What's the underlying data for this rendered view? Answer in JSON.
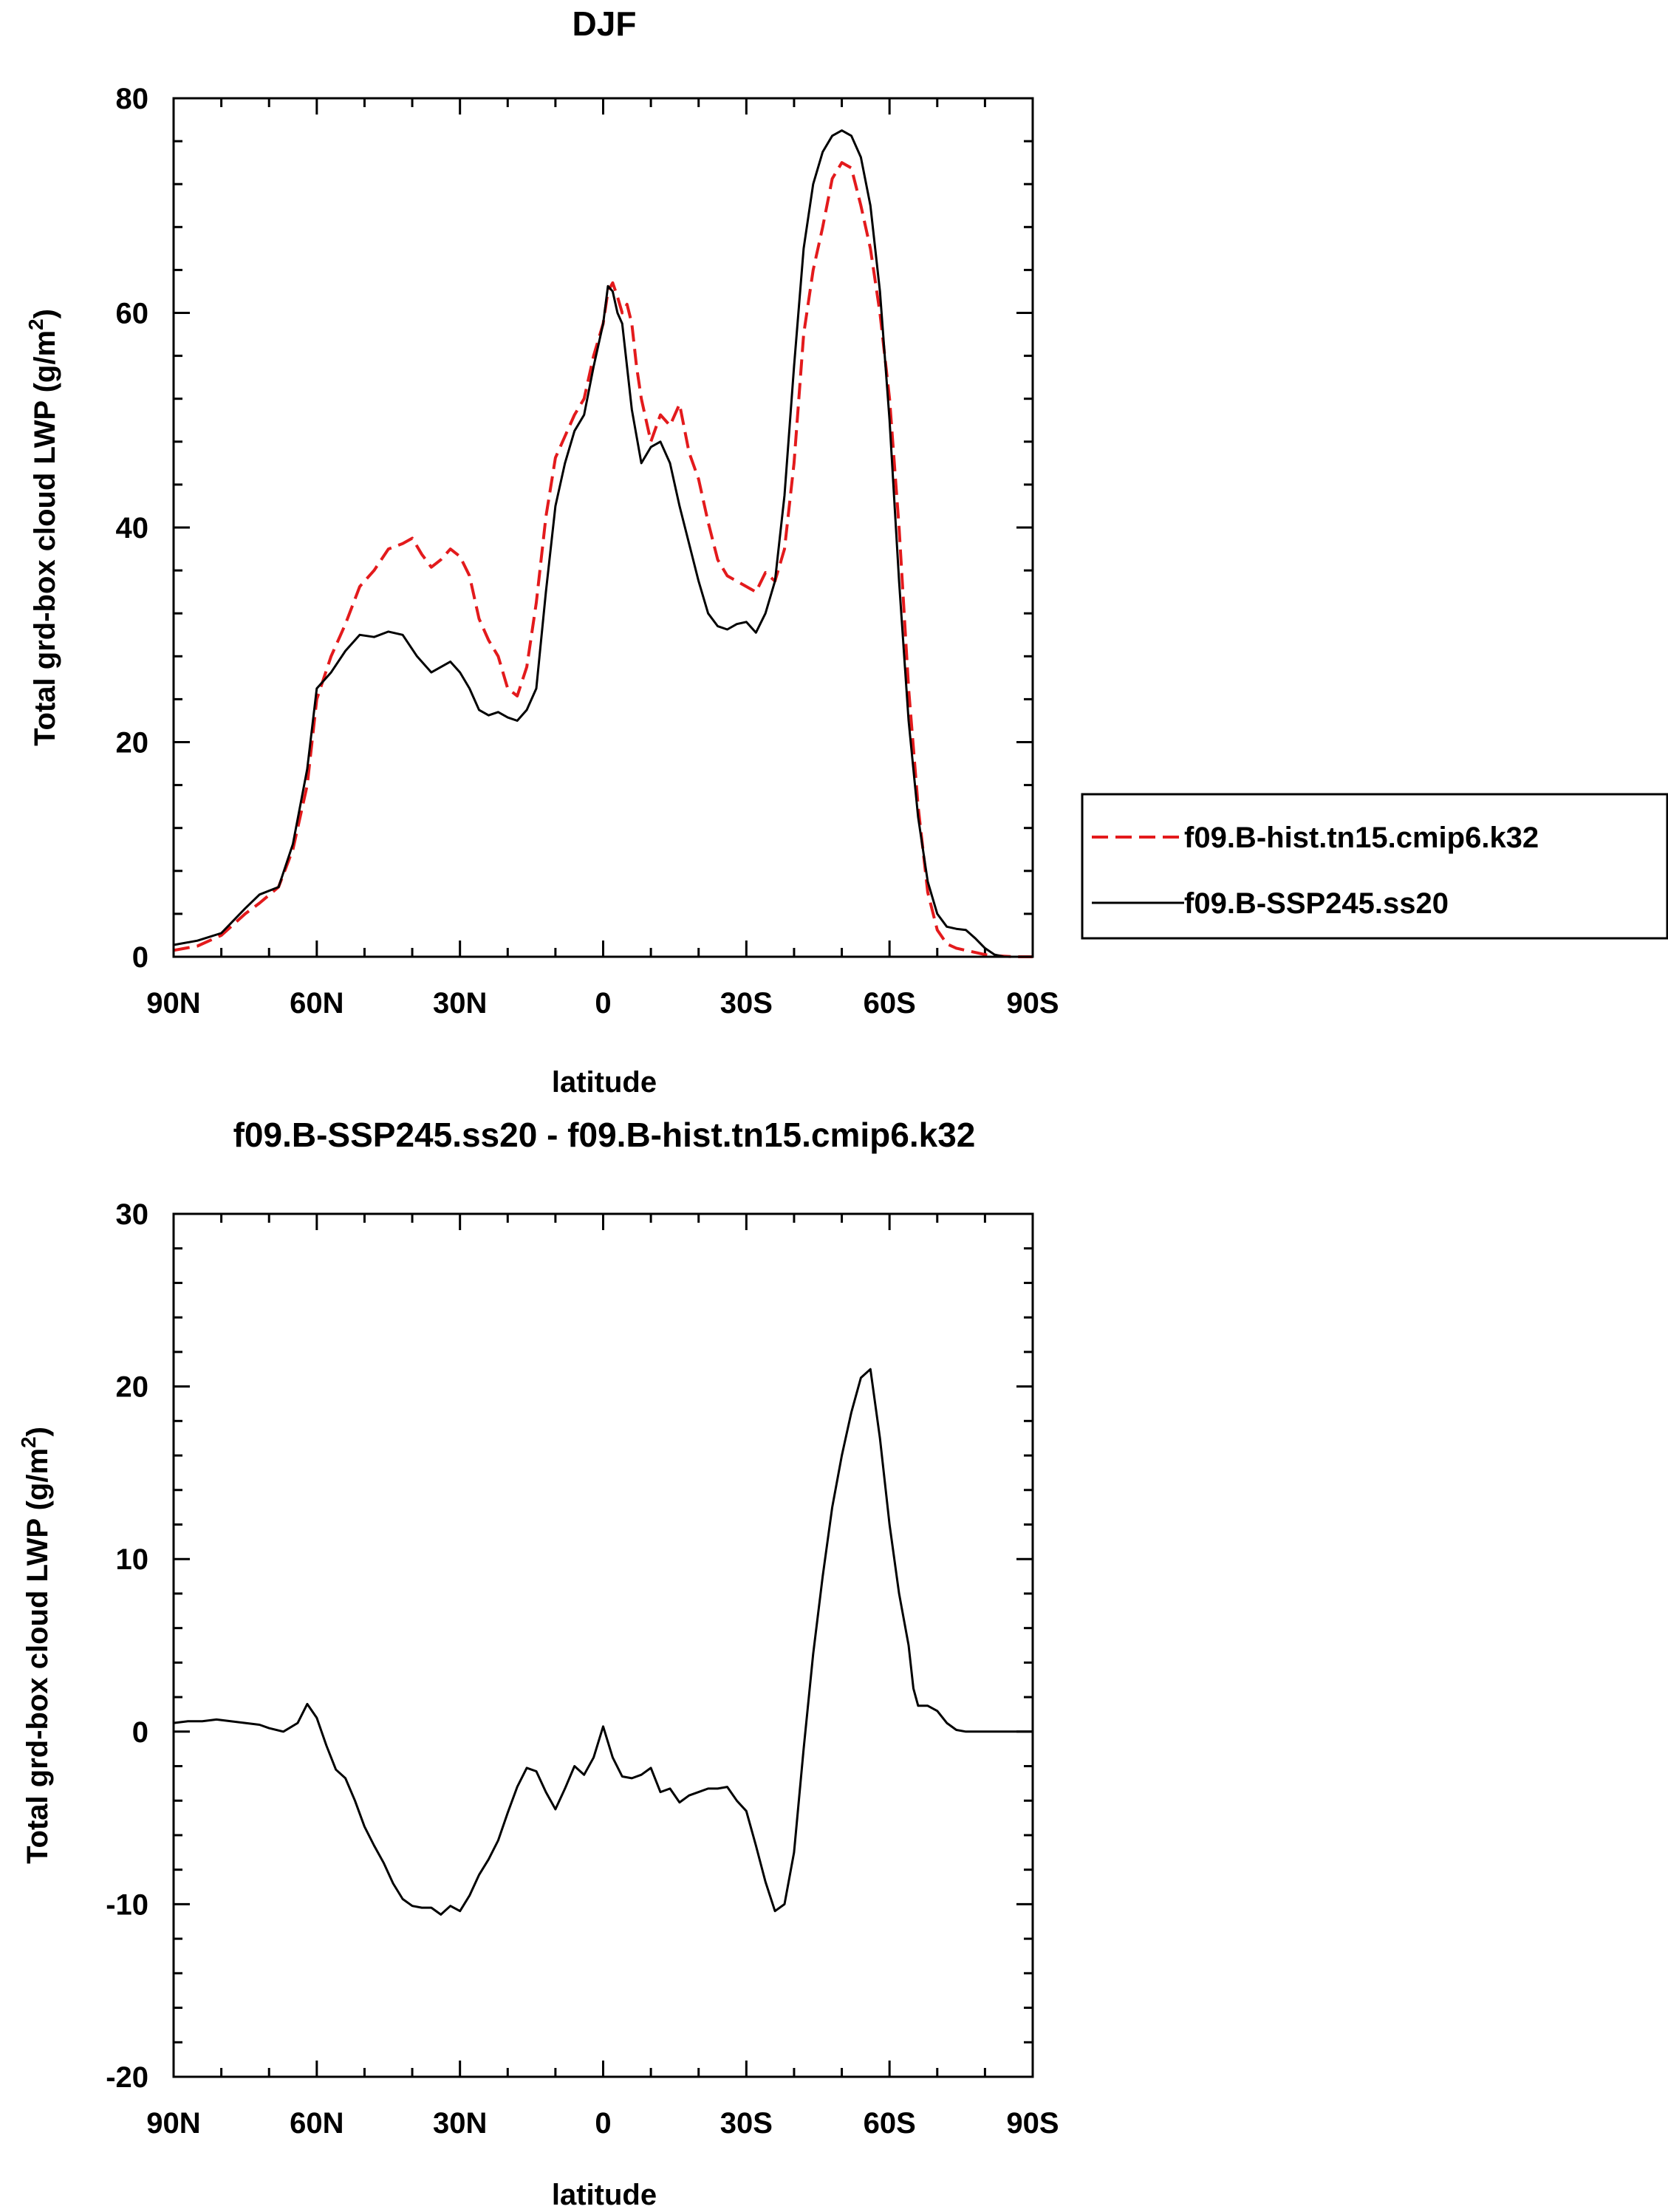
{
  "chart_data": [
    {
      "type": "line",
      "title": "DJF",
      "xlabel": "latitude",
      "ylabel": "Total grd-box cloud LWP (g/m",
      "ylabel_sup": "2",
      "ylabel_close": ")",
      "xlim": [
        -90,
        90
      ],
      "ylim": [
        0,
        80
      ],
      "x_ticks": [
        {
          "value": -90,
          "label": "90N"
        },
        {
          "value": -60,
          "label": "60N"
        },
        {
          "value": -30,
          "label": "30N"
        },
        {
          "value": 0,
          "label": "0"
        },
        {
          "value": 30,
          "label": "30S"
        },
        {
          "value": 60,
          "label": "60S"
        },
        {
          "value": 90,
          "label": "90S"
        }
      ],
      "y_ticks": [
        {
          "value": 0,
          "label": "0"
        },
        {
          "value": 20,
          "label": "20"
        },
        {
          "value": 40,
          "label": "40"
        },
        {
          "value": 60,
          "label": "60"
        },
        {
          "value": 80,
          "label": "80"
        }
      ],
      "legend_position": "right",
      "series": [
        {
          "name": "f09.B-hist.tn15.cmip6.k32",
          "color": "#e31a1c",
          "dash": "dashed",
          "x": [
            -90,
            -85,
            -80,
            -75,
            -72,
            -68,
            -65,
            -62,
            -60,
            -57,
            -54,
            -51,
            -48,
            -45,
            -42,
            -40,
            -38,
            -36,
            -34,
            -32,
            -30,
            -28,
            -26,
            -24,
            -22,
            -20,
            -18,
            -16,
            -14,
            -12,
            -10,
            -8,
            -6,
            -4,
            -2,
            0,
            1,
            2,
            3,
            4,
            5,
            6,
            7,
            8,
            10,
            12,
            14,
            16,
            18,
            20,
            22,
            24,
            26,
            28,
            30,
            32,
            34,
            36,
            38,
            40,
            42,
            44,
            46,
            48,
            50,
            52,
            54,
            56,
            58,
            60,
            62,
            64,
            66,
            68,
            70,
            72,
            74,
            76,
            78,
            80,
            82,
            84,
            86,
            88,
            90
          ],
          "y": [
            0.6,
            1.0,
            2.0,
            4.0,
            5.0,
            6.5,
            10.0,
            16.0,
            24.0,
            28.0,
            31.0,
            34.5,
            36.0,
            38.0,
            38.5,
            39.0,
            37.5,
            36.3,
            37.0,
            38.0,
            37.3,
            35.5,
            31.5,
            29.5,
            28.0,
            25.0,
            24.3,
            27.0,
            33.0,
            41.0,
            46.5,
            48.5,
            50.5,
            52.0,
            56.0,
            59.0,
            62.0,
            62.8,
            61.5,
            60.0,
            60.8,
            59.0,
            55.0,
            52.0,
            48.0,
            50.5,
            49.5,
            51.5,
            47.0,
            44.5,
            40.5,
            37.0,
            35.5,
            35.0,
            34.5,
            34.0,
            35.8,
            35.0,
            38.0,
            46.0,
            58.0,
            64.0,
            68.0,
            72.5,
            74.0,
            73.5,
            70.0,
            66.0,
            60.0,
            52.0,
            40.0,
            25.0,
            14.0,
            6.0,
            2.5,
            1.2,
            0.8,
            0.6,
            0.4,
            0.2,
            0.1,
            0.05,
            0,
            0,
            0
          ]
        },
        {
          "name": "f09.B-SSP245.ss20",
          "color": "#000000",
          "dash": "solid",
          "x": [
            -90,
            -85,
            -80,
            -75,
            -72,
            -68,
            -65,
            -62,
            -60,
            -57,
            -54,
            -51,
            -48,
            -45,
            -42,
            -39,
            -36,
            -34,
            -32,
            -30,
            -28,
            -26,
            -24,
            -22,
            -20,
            -18,
            -16,
            -14,
            -12,
            -10,
            -8,
            -6,
            -4,
            -2,
            0,
            1,
            2,
            3,
            4,
            5,
            6,
            8,
            10,
            12,
            14,
            16,
            18,
            20,
            22,
            24,
            26,
            28,
            30,
            32,
            34,
            36,
            38,
            40,
            42,
            44,
            46,
            48,
            50,
            52,
            54,
            56,
            58,
            60,
            62,
            64,
            66,
            68,
            70,
            72,
            74,
            76,
            78,
            80,
            82,
            84,
            86,
            88,
            90
          ],
          "y": [
            1.1,
            1.5,
            2.2,
            4.5,
            5.8,
            6.5,
            10.5,
            17.5,
            25.0,
            26.5,
            28.5,
            30.0,
            29.8,
            30.3,
            30.0,
            28.0,
            26.5,
            27.0,
            27.5,
            26.5,
            25.0,
            23.0,
            22.5,
            22.8,
            22.3,
            22.0,
            23.0,
            25.0,
            34.0,
            42.0,
            46.0,
            49.0,
            50.5,
            55.0,
            59.0,
            62.5,
            62.0,
            60.0,
            59.0,
            55.0,
            51.0,
            46.0,
            47.5,
            48.0,
            46.0,
            42.0,
            38.5,
            35.0,
            32.0,
            30.8,
            30.5,
            31.0,
            31.2,
            30.2,
            32.0,
            35.0,
            43.0,
            55.0,
            66.0,
            72.0,
            75.0,
            76.5,
            77.0,
            76.5,
            74.5,
            70.0,
            62.0,
            50.0,
            35.0,
            22.0,
            13.0,
            7.0,
            4.0,
            2.8,
            2.6,
            2.5,
            1.7,
            0.8,
            0.2,
            0,
            0,
            0,
            0
          ]
        }
      ]
    },
    {
      "type": "line",
      "title": "f09.B-SSP245.ss20 - f09.B-hist.tn15.cmip6.k32",
      "xlabel": "latitude",
      "ylabel": "Total grd-box cloud LWP (g/m",
      "ylabel_sup": "2",
      "ylabel_close": ")",
      "xlim": [
        -90,
        90
      ],
      "ylim": [
        -20,
        30
      ],
      "x_ticks": [
        {
          "value": -90,
          "label": "90N"
        },
        {
          "value": -60,
          "label": "60N"
        },
        {
          "value": -30,
          "label": "30N"
        },
        {
          "value": 0,
          "label": "0"
        },
        {
          "value": 30,
          "label": "30S"
        },
        {
          "value": 60,
          "label": "60S"
        },
        {
          "value": 90,
          "label": "90S"
        }
      ],
      "y_ticks": [
        {
          "value": -20,
          "label": "-20"
        },
        {
          "value": -10,
          "label": "-10"
        },
        {
          "value": 0,
          "label": "0"
        },
        {
          "value": 10,
          "label": "10"
        },
        {
          "value": 20,
          "label": "20"
        },
        {
          "value": 30,
          "label": "30"
        }
      ],
      "series": [
        {
          "name": "f09.B-SSP245.ss20 - f09.B-hist.tn15.cmip6.k32",
          "color": "#000000",
          "dash": "solid",
          "x": [
            -90,
            -87,
            -84,
            -81,
            -78,
            -75,
            -72,
            -70,
            -67,
            -64,
            -62,
            -60,
            -58,
            -56,
            -54,
            -52,
            -50,
            -48,
            -46,
            -44,
            -42,
            -40,
            -38,
            -36,
            -34,
            -32,
            -30,
            -28,
            -26,
            -24,
            -22,
            -20,
            -18,
            -16,
            -14,
            -12,
            -10,
            -8,
            -6,
            -4,
            -2,
            0,
            2,
            4,
            6,
            8,
            10,
            12,
            14,
            16,
            18,
            20,
            22,
            24,
            26,
            28,
            30,
            32,
            34,
            36,
            38,
            40,
            42,
            44,
            46,
            48,
            50,
            52,
            54,
            56,
            58,
            60,
            62,
            64,
            65,
            66,
            68,
            70,
            72,
            74,
            76,
            78,
            80,
            82,
            84,
            86,
            88,
            90
          ],
          "y": [
            0.5,
            0.6,
            0.6,
            0.7,
            0.6,
            0.5,
            0.4,
            0.2,
            0.0,
            0.5,
            1.6,
            0.8,
            -0.8,
            -2.2,
            -2.7,
            -4.0,
            -5.5,
            -6.6,
            -7.6,
            -8.8,
            -9.7,
            -10.1,
            -10.2,
            -10.2,
            -10.6,
            -10.1,
            -10.4,
            -9.5,
            -8.3,
            -7.4,
            -6.3,
            -4.7,
            -3.2,
            -2.1,
            -2.3,
            -3.5,
            -4.5,
            -3.3,
            -2.0,
            -2.5,
            -1.5,
            0.3,
            -1.5,
            -2.6,
            -2.7,
            -2.5,
            -2.1,
            -3.5,
            -3.3,
            -4.1,
            -3.7,
            -3.5,
            -3.3,
            -3.3,
            -3.2,
            -4.0,
            -4.6,
            -6.6,
            -8.7,
            -10.4,
            -10.0,
            -7.0,
            -1.0,
            4.5,
            9.0,
            13.0,
            16.0,
            18.5,
            20.5,
            21.0,
            17.0,
            12.0,
            8.0,
            5.0,
            2.5,
            1.5,
            1.5,
            1.2,
            0.5,
            0.1,
            0.0,
            0.0,
            0.0,
            0.0,
            0.0,
            0.0,
            0.0,
            0.0
          ]
        }
      ]
    }
  ]
}
